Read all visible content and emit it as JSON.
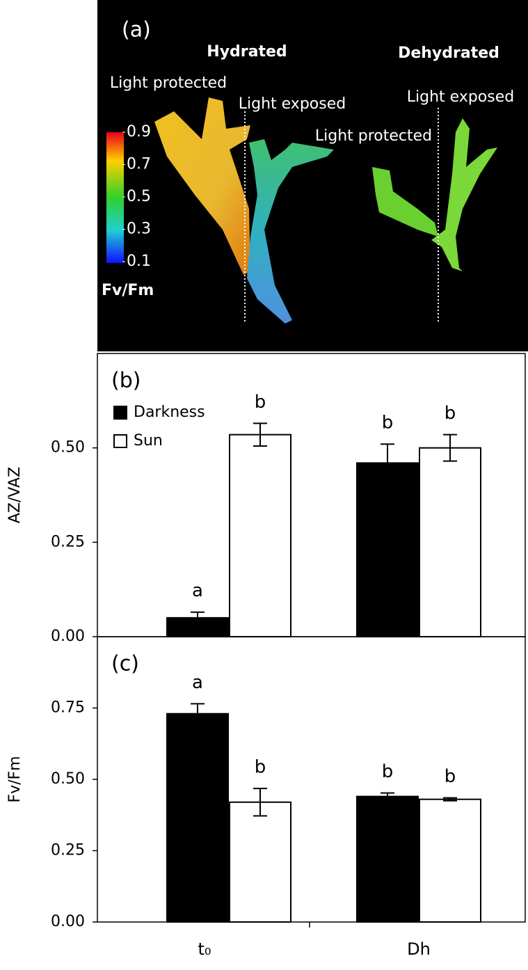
{
  "panel_a": {
    "label": "(a)",
    "headings": [
      "Hydrated",
      "Dehydrated"
    ],
    "annotations": [
      "Light protected",
      "Light exposed",
      "Light protected",
      "Light exposed"
    ],
    "colorbar": {
      "label": "Fv/Fm",
      "lim": [
        0.1,
        0.9
      ],
      "ticks": [
        0.9,
        0.7,
        0.5,
        0.3,
        0.1
      ]
    }
  },
  "chart_data": [
    {
      "type": "bar",
      "panel_label": "(b)",
      "ylabel": "AZ/VAZ",
      "ylim": [
        0,
        0.75
      ],
      "yticks": [
        {
          "value": 0,
          "label": "0.00"
        },
        {
          "value": 0.25,
          "label": "0.25"
        },
        {
          "value": 0.5,
          "label": "0.50"
        }
      ],
      "legend": "upper left",
      "series": [
        {
          "name": "Darkness",
          "color": "#000000",
          "values": [
            0.05,
            0.46
          ],
          "errors": [
            0.015,
            0.05
          ],
          "letters": [
            "a",
            "b"
          ]
        },
        {
          "name": "Sun",
          "color": "#ffffff",
          "values": [
            0.535,
            0.5
          ],
          "errors": [
            0.03,
            0.035
          ],
          "letters": [
            "b",
            "b"
          ]
        }
      ]
    },
    {
      "type": "bar",
      "panel_label": "(c)",
      "ylabel": "Fv/Fm",
      "categories": [
        "t₀",
        "Dh"
      ],
      "ylim": [
        0,
        1.0
      ],
      "yticks": [
        {
          "value": 0,
          "label": "0.00"
        },
        {
          "value": 0.25,
          "label": "0.25"
        },
        {
          "value": 0.5,
          "label": "0.50"
        },
        {
          "value": 0.75,
          "label": "0.75"
        }
      ],
      "series": [
        {
          "name": "Darkness",
          "color": "#000000",
          "values": [
            0.73,
            0.44
          ],
          "errors": [
            0.035,
            0.012
          ],
          "letters": [
            "a",
            "b"
          ]
        },
        {
          "name": "Sun",
          "color": "#ffffff",
          "values": [
            0.42,
            0.43
          ],
          "errors": [
            0.048,
            0.005
          ],
          "letters": [
            "b",
            "b"
          ]
        }
      ]
    }
  ]
}
